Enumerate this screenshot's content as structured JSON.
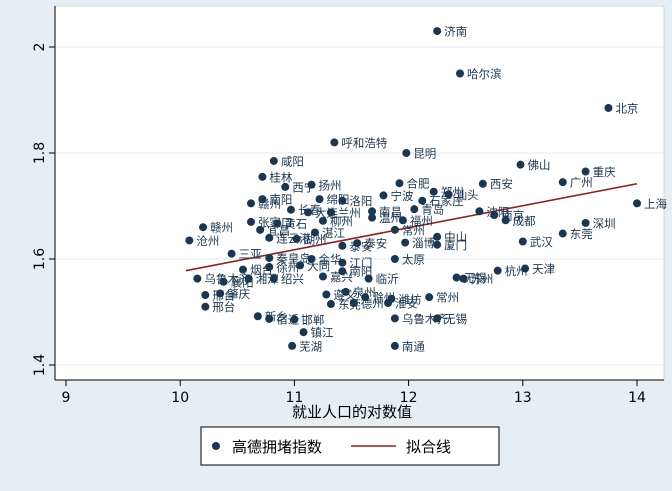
{
  "chart_data": {
    "type": "scatter",
    "xlabel": "就业人口的对数值",
    "ylabel": "",
    "xlim": [
      9,
      14
    ],
    "ylim": [
      1.4,
      2.05
    ],
    "x_ticks": [
      "9",
      "10",
      "11",
      "12",
      "13",
      "14"
    ],
    "y_ticks": [
      "1.4",
      "1.6",
      "1.8",
      "2"
    ],
    "grid": "horizontal",
    "legend_position": "bottom",
    "colors": {
      "point": "#1b3651",
      "fit": "#8c2423",
      "plot_bg": "#ffffff",
      "outer_bg": "#e7eef3",
      "grid": "#e3e9ee"
    },
    "series": [
      {
        "name": "高德拥堵指数",
        "points": [
          {
            "x": 12.25,
            "y": 2.03,
            "label": "济南"
          },
          {
            "x": 12.45,
            "y": 1.95,
            "label": "哈尔滨"
          },
          {
            "x": 13.75,
            "y": 1.885,
            "label": "北京"
          },
          {
            "x": 11.35,
            "y": 1.82,
            "label": "呼和浩特"
          },
          {
            "x": 11.98,
            "y": 1.8,
            "label": "昆明"
          },
          {
            "x": 10.82,
            "y": 1.785,
            "label": "咸阳"
          },
          {
            "x": 12.98,
            "y": 1.778,
            "label": "佛山"
          },
          {
            "x": 13.55,
            "y": 1.765,
            "label": "重庆"
          },
          {
            "x": 10.72,
            "y": 1.755,
            "label": "桂林"
          },
          {
            "x": 12.65,
            "y": 1.742,
            "label": "西安"
          },
          {
            "x": 13.35,
            "y": 1.745,
            "label": "广州"
          },
          {
            "x": 11.15,
            "y": 1.74,
            "label": "扬州"
          },
          {
            "x": 10.92,
            "y": 1.736,
            "label": "西宁"
          },
          {
            "x": 11.92,
            "y": 1.743,
            "label": "合肥"
          },
          {
            "x": 12.22,
            "y": 1.727,
            "label": "郑州"
          },
          {
            "x": 12.35,
            "y": 1.722,
            "label": "汕头"
          },
          {
            "x": 10.72,
            "y": 1.713,
            "label": "南阳"
          },
          {
            "x": 10.62,
            "y": 1.705,
            "label": "赣州"
          },
          {
            "x": 11.22,
            "y": 1.713,
            "label": "绵阳"
          },
          {
            "x": 11.42,
            "y": 1.71,
            "label": "洛阳"
          },
          {
            "x": 11.78,
            "y": 1.72,
            "label": "宁波"
          },
          {
            "x": 12.12,
            "y": 1.71,
            "label": "石家庄"
          },
          {
            "x": 10.97,
            "y": 1.693,
            "label": "长春"
          },
          {
            "x": 11.12,
            "y": 1.688,
            "label": "大连"
          },
          {
            "x": 11.32,
            "y": 1.688,
            "label": "兰州"
          },
          {
            "x": 11.68,
            "y": 1.69,
            "label": "南昌"
          },
          {
            "x": 12.05,
            "y": 1.694,
            "label": "青岛"
          },
          {
            "x": 12.62,
            "y": 1.69,
            "label": "沈阳"
          },
          {
            "x": 12.75,
            "y": 1.683,
            "label": "南京"
          },
          {
            "x": 12.85,
            "y": 1.673,
            "label": "成都"
          },
          {
            "x": 10.2,
            "y": 1.66,
            "label": "赣州"
          },
          {
            "x": 10.62,
            "y": 1.67,
            "label": "张家口"
          },
          {
            "x": 10.85,
            "y": 1.667,
            "label": "黄石"
          },
          {
            "x": 11.25,
            "y": 1.672,
            "label": "柳州"
          },
          {
            "x": 11.68,
            "y": 1.678,
            "label": "温州"
          },
          {
            "x": 11.95,
            "y": 1.673,
            "label": "福州"
          },
          {
            "x": 13.55,
            "y": 1.668,
            "label": "深圳"
          },
          {
            "x": 10.7,
            "y": 1.655,
            "label": "宜昌"
          },
          {
            "x": 11.18,
            "y": 1.65,
            "label": "湛江"
          },
          {
            "x": 11.88,
            "y": 1.655,
            "label": "常州"
          },
          {
            "x": 10.08,
            "y": 1.635,
            "label": "沧州"
          },
          {
            "x": 10.78,
            "y": 1.64,
            "label": "连云港"
          },
          {
            "x": 11.02,
            "y": 1.638,
            "label": "湖州"
          },
          {
            "x": 11.55,
            "y": 1.63,
            "label": "泰安"
          },
          {
            "x": 11.97,
            "y": 1.631,
            "label": "淄博"
          },
          {
            "x": 12.25,
            "y": 1.642,
            "label": "中山"
          },
          {
            "x": 12.25,
            "y": 1.627,
            "label": "厦门"
          },
          {
            "x": 13.35,
            "y": 1.648,
            "label": "东莞"
          },
          {
            "x": 13.0,
            "y": 1.633,
            "label": "武汉"
          },
          {
            "x": 11.42,
            "y": 1.625,
            "label": "泰安"
          },
          {
            "x": 14.0,
            "y": 1.705,
            "label": "上海"
          },
          {
            "x": 10.45,
            "y": 1.61,
            "label": "三亚"
          },
          {
            "x": 10.78,
            "y": 1.602,
            "label": "秦皇岛"
          },
          {
            "x": 11.15,
            "y": 1.6,
            "label": "金华"
          },
          {
            "x": 11.42,
            "y": 1.593,
            "label": "江门"
          },
          {
            "x": 11.88,
            "y": 1.6,
            "label": "太原"
          },
          {
            "x": 10.55,
            "y": 1.58,
            "label": "烟台"
          },
          {
            "x": 10.78,
            "y": 1.585,
            "label": "徐州"
          },
          {
            "x": 11.05,
            "y": 1.588,
            "label": "大同"
          },
          {
            "x": 11.42,
            "y": 1.577,
            "label": "南阳"
          },
          {
            "x": 10.15,
            "y": 1.563,
            "label": "乌鲁木齐"
          },
          {
            "x": 10.38,
            "y": 1.557,
            "label": "襄阳"
          },
          {
            "x": 10.6,
            "y": 1.563,
            "label": "湘潭"
          },
          {
            "x": 10.82,
            "y": 1.563,
            "label": "绍兴"
          },
          {
            "x": 11.25,
            "y": 1.567,
            "label": "嘉兴"
          },
          {
            "x": 11.65,
            "y": 1.563,
            "label": "临沂"
          },
          {
            "x": 12.42,
            "y": 1.565,
            "label": "无锡"
          },
          {
            "x": 12.48,
            "y": 1.563,
            "label": "苏州"
          },
          {
            "x": 12.78,
            "y": 1.578,
            "label": "杭州"
          },
          {
            "x": 13.02,
            "y": 1.582,
            "label": "天津"
          },
          {
            "x": 10.22,
            "y": 1.532,
            "label": "邢台"
          },
          {
            "x": 10.35,
            "y": 1.535,
            "label": "肇庆"
          },
          {
            "x": 11.28,
            "y": 1.533,
            "label": "遵义"
          },
          {
            "x": 11.45,
            "y": 1.538,
            "label": "泉州"
          },
          {
            "x": 11.62,
            "y": 1.528,
            "label": "滁州"
          },
          {
            "x": 11.85,
            "y": 1.525,
            "label": "潍坊"
          },
          {
            "x": 12.18,
            "y": 1.528,
            "label": "常州"
          },
          {
            "x": 10.22,
            "y": 1.51,
            "label": "邢台"
          },
          {
            "x": 11.32,
            "y": 1.515,
            "label": "东莞"
          },
          {
            "x": 11.52,
            "y": 1.517,
            "label": "德州"
          },
          {
            "x": 11.82,
            "y": 1.517,
            "label": "淮安"
          },
          {
            "x": 10.68,
            "y": 1.492,
            "label": "新乡"
          },
          {
            "x": 10.78,
            "y": 1.487,
            "label": "宿迁"
          },
          {
            "x": 11.0,
            "y": 1.486,
            "label": "邯郸"
          },
          {
            "x": 11.88,
            "y": 1.488,
            "label": "乌鲁木齐"
          },
          {
            "x": 12.25,
            "y": 1.488,
            "label": "无锡"
          },
          {
            "x": 11.08,
            "y": 1.462,
            "label": "镇江"
          },
          {
            "x": 10.98,
            "y": 1.436,
            "label": "芜湖"
          },
          {
            "x": 11.88,
            "y": 1.436,
            "label": "南通"
          }
        ]
      },
      {
        "name": "拟合线",
        "type": "line",
        "x": [
          10.05,
          14.0
        ],
        "y": [
          1.578,
          1.742
        ]
      }
    ]
  },
  "legend": {
    "items": [
      {
        "label": "高德拥堵指数",
        "marker": "dot"
      },
      {
        "label": "拟合线",
        "marker": "line"
      }
    ]
  }
}
